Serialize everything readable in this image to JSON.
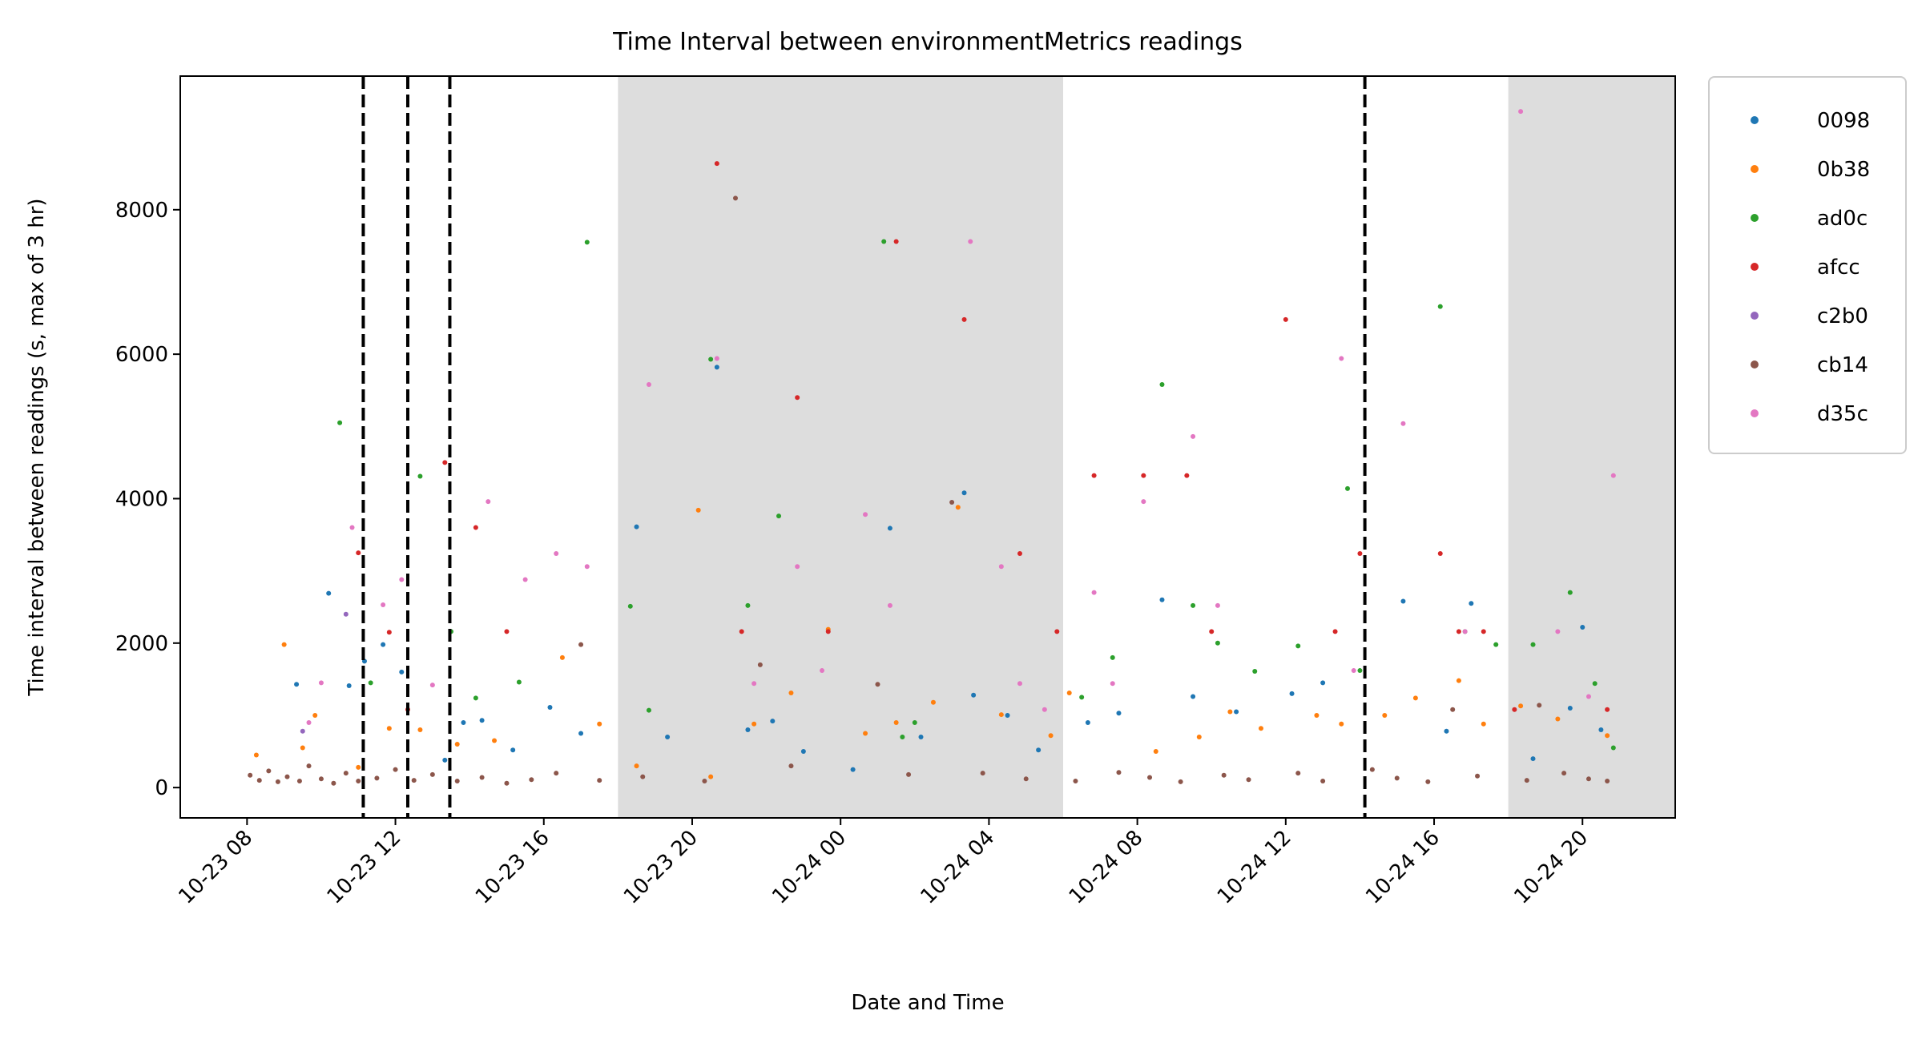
{
  "chart_data": {
    "type": "scatter",
    "title": "Time Interval between environmentMetrics readings",
    "xlabel": "Date and Time",
    "ylabel": "Time interval between readings (s, max of 3 hr)",
    "x_unit": "date-time",
    "xlim": [
      "2023-10-23 06:12",
      "2023-10-24 22:30"
    ],
    "ylim": [
      -420,
      9850
    ],
    "x_ticks": [
      {
        "value": "2023-10-23 08:00",
        "label": "10-23 08"
      },
      {
        "value": "2023-10-23 12:00",
        "label": "10-23 12"
      },
      {
        "value": "2023-10-23 16:00",
        "label": "10-23 16"
      },
      {
        "value": "2023-10-23 20:00",
        "label": "10-23 20"
      },
      {
        "value": "2023-10-24 00:00",
        "label": "10-24 00"
      },
      {
        "value": "2023-10-24 04:00",
        "label": "10-24 04"
      },
      {
        "value": "2023-10-24 08:00",
        "label": "10-24 08"
      },
      {
        "value": "2023-10-24 12:00",
        "label": "10-24 12"
      },
      {
        "value": "2023-10-24 16:00",
        "label": "10-24 16"
      },
      {
        "value": "2023-10-24 20:00",
        "label": "10-24 20"
      }
    ],
    "y_ticks": [
      {
        "value": 0,
        "label": "0"
      },
      {
        "value": 2000,
        "label": "2000"
      },
      {
        "value": 4000,
        "label": "4000"
      },
      {
        "value": 6000,
        "label": "6000"
      },
      {
        "value": 8000,
        "label": "8000"
      }
    ],
    "grid": false,
    "legend_position": "outside-top-right",
    "shaded_regions": [
      {
        "start": "2023-10-23 18:00",
        "end": "2023-10-24 06:00",
        "color": "#dddddd"
      },
      {
        "start": "2023-10-24 18:00",
        "end": "2023-10-24 22:30",
        "color": "#dddddd"
      }
    ],
    "vertical_lines": [
      "2023-10-23 11:08",
      "2023-10-23 12:20",
      "2023-10-23 13:28",
      "2023-10-24 14:08"
    ],
    "series": [
      {
        "name": "0098",
        "color": "#1f77b4",
        "points": [
          [
            "2023-10-23 09:20",
            1430
          ],
          [
            "2023-10-23 10:12",
            2690
          ],
          [
            "2023-10-23 10:45",
            1410
          ],
          [
            "2023-10-23 11:10",
            1750
          ],
          [
            "2023-10-23 11:40",
            1980
          ],
          [
            "2023-10-23 12:10",
            1600
          ],
          [
            "2023-10-23 13:20",
            380
          ],
          [
            "2023-10-23 13:50",
            900
          ],
          [
            "2023-10-23 14:20",
            930
          ],
          [
            "2023-10-23 15:10",
            520
          ],
          [
            "2023-10-23 16:10",
            1110
          ],
          [
            "2023-10-23 17:00",
            750
          ],
          [
            "2023-10-23 18:30",
            3610
          ],
          [
            "2023-10-23 19:20",
            700
          ],
          [
            "2023-10-23 20:40",
            5820
          ],
          [
            "2023-10-23 21:30",
            800
          ],
          [
            "2023-10-23 22:10",
            920
          ],
          [
            "2023-10-23 23:00",
            500
          ],
          [
            "2023-10-24 00:20",
            250
          ],
          [
            "2023-10-24 01:20",
            3590
          ],
          [
            "2023-10-24 02:10",
            700
          ],
          [
            "2023-10-24 03:20",
            4080
          ],
          [
            "2023-10-24 03:35",
            1280
          ],
          [
            "2023-10-24 04:30",
            1000
          ],
          [
            "2023-10-24 05:20",
            520
          ],
          [
            "2023-10-24 06:40",
            900
          ],
          [
            "2023-10-24 07:30",
            1030
          ],
          [
            "2023-10-24 08:40",
            2600
          ],
          [
            "2023-10-24 09:30",
            1260
          ],
          [
            "2023-10-24 10:40",
            1050
          ],
          [
            "2023-10-24 12:10",
            1300
          ],
          [
            "2023-10-24 13:00",
            1450
          ],
          [
            "2023-10-24 15:10",
            2580
          ],
          [
            "2023-10-24 16:20",
            780
          ],
          [
            "2023-10-24 17:00",
            2550
          ],
          [
            "2023-10-24 18:40",
            400
          ],
          [
            "2023-10-24 19:40",
            1100
          ],
          [
            "2023-10-24 20:00",
            2220
          ],
          [
            "2023-10-24 20:30",
            800
          ]
        ]
      },
      {
        "name": "0b38",
        "color": "#ff7f0e",
        "points": [
          [
            "2023-10-23 08:15",
            450
          ],
          [
            "2023-10-23 09:00",
            1980
          ],
          [
            "2023-10-23 09:30",
            550
          ],
          [
            "2023-10-23 09:50",
            1000
          ],
          [
            "2023-10-23 11:00",
            280
          ],
          [
            "2023-10-23 11:50",
            820
          ],
          [
            "2023-10-23 12:40",
            800
          ],
          [
            "2023-10-23 13:40",
            600
          ],
          [
            "2023-10-23 14:40",
            650
          ],
          [
            "2023-10-23 16:30",
            1800
          ],
          [
            "2023-10-23 17:30",
            880
          ],
          [
            "2023-10-23 18:30",
            300
          ],
          [
            "2023-10-23 20:10",
            3840
          ],
          [
            "2023-10-23 20:30",
            150
          ],
          [
            "2023-10-23 21:40",
            880
          ],
          [
            "2023-10-23 22:40",
            1310
          ],
          [
            "2023-10-23 23:40",
            2190
          ],
          [
            "2023-10-24 00:40",
            750
          ],
          [
            "2023-10-24 01:30",
            900
          ],
          [
            "2023-10-24 02:30",
            1180
          ],
          [
            "2023-10-24 03:10",
            3880
          ],
          [
            "2023-10-24 04:20",
            1010
          ],
          [
            "2023-10-24 05:40",
            720
          ],
          [
            "2023-10-24 06:10",
            1310
          ],
          [
            "2023-10-24 08:30",
            500
          ],
          [
            "2023-10-24 09:40",
            700
          ],
          [
            "2023-10-24 10:30",
            1050
          ],
          [
            "2023-10-24 11:20",
            820
          ],
          [
            "2023-10-24 12:50",
            1000
          ],
          [
            "2023-10-24 13:30",
            880
          ],
          [
            "2023-10-24 14:40",
            1000
          ],
          [
            "2023-10-24 15:30",
            1240
          ],
          [
            "2023-10-24 16:40",
            1480
          ],
          [
            "2023-10-24 17:20",
            880
          ],
          [
            "2023-10-24 18:20",
            1130
          ],
          [
            "2023-10-24 19:20",
            950
          ],
          [
            "2023-10-24 20:40",
            720
          ]
        ]
      },
      {
        "name": "ad0c",
        "color": "#2ca02c",
        "points": [
          [
            "2023-10-23 10:30",
            5050
          ],
          [
            "2023-10-23 11:20",
            1450
          ],
          [
            "2023-10-23 12:40",
            4310
          ],
          [
            "2023-10-23 13:30",
            2160
          ],
          [
            "2023-10-23 14:10",
            1240
          ],
          [
            "2023-10-23 15:20",
            1460
          ],
          [
            "2023-10-23 17:10",
            7550
          ],
          [
            "2023-10-23 18:20",
            2510
          ],
          [
            "2023-10-23 18:50",
            1070
          ],
          [
            "2023-10-23 20:30",
            5930
          ],
          [
            "2023-10-23 21:30",
            2520
          ],
          [
            "2023-10-23 22:20",
            3760
          ],
          [
            "2023-10-24 01:10",
            7560
          ],
          [
            "2023-10-24 01:40",
            700
          ],
          [
            "2023-10-24 02:00",
            900
          ],
          [
            "2023-10-24 06:30",
            1250
          ],
          [
            "2023-10-24 07:20",
            1800
          ],
          [
            "2023-10-24 08:40",
            5580
          ],
          [
            "2023-10-24 09:30",
            2520
          ],
          [
            "2023-10-24 10:10",
            2000
          ],
          [
            "2023-10-24 11:10",
            1610
          ],
          [
            "2023-10-24 12:20",
            1960
          ],
          [
            "2023-10-24 13:40",
            4140
          ],
          [
            "2023-10-24 14:00",
            1620
          ],
          [
            "2023-10-24 16:10",
            6660
          ],
          [
            "2023-10-24 16:50",
            2160
          ],
          [
            "2023-10-24 17:40",
            1980
          ],
          [
            "2023-10-24 18:40",
            1980
          ],
          [
            "2023-10-24 19:40",
            2700
          ],
          [
            "2023-10-24 20:20",
            1440
          ],
          [
            "2023-10-24 20:50",
            550
          ]
        ]
      },
      {
        "name": "afcc",
        "color": "#d62728",
        "points": [
          [
            "2023-10-23 11:00",
            3250
          ],
          [
            "2023-10-23 11:50",
            2150
          ],
          [
            "2023-10-23 12:20",
            1080
          ],
          [
            "2023-10-23 13:20",
            4500
          ],
          [
            "2023-10-23 14:10",
            3600
          ],
          [
            "2023-10-23 15:00",
            2160
          ],
          [
            "2023-10-23 20:40",
            8640
          ],
          [
            "2023-10-23 21:20",
            2160
          ],
          [
            "2023-10-23 22:50",
            5400
          ],
          [
            "2023-10-23 23:40",
            2160
          ],
          [
            "2023-10-24 01:30",
            7560
          ],
          [
            "2023-10-24 03:20",
            6480
          ],
          [
            "2023-10-24 04:50",
            3240
          ],
          [
            "2023-10-24 05:50",
            2160
          ],
          [
            "2023-10-24 06:50",
            4320
          ],
          [
            "2023-10-24 08:10",
            4320
          ],
          [
            "2023-10-24 09:20",
            4320
          ],
          [
            "2023-10-24 10:00",
            2160
          ],
          [
            "2023-10-24 12:00",
            6480
          ],
          [
            "2023-10-24 13:20",
            2160
          ],
          [
            "2023-10-24 14:00",
            3240
          ],
          [
            "2023-10-24 16:10",
            3240
          ],
          [
            "2023-10-24 16:40",
            2160
          ],
          [
            "2023-10-24 17:20",
            2160
          ],
          [
            "2023-10-24 18:10",
            1080
          ],
          [
            "2023-10-24 20:40",
            1080
          ]
        ]
      },
      {
        "name": "c2b0",
        "color": "#9467bd",
        "points": [
          [
            "2023-10-23 09:30",
            780
          ],
          [
            "2023-10-23 10:40",
            2400
          ]
        ]
      },
      {
        "name": "cb14",
        "color": "#8c564b",
        "points": [
          [
            "2023-10-23 08:05",
            170
          ],
          [
            "2023-10-23 08:20",
            100
          ],
          [
            "2023-10-23 08:35",
            230
          ],
          [
            "2023-10-23 08:50",
            80
          ],
          [
            "2023-10-23 09:05",
            150
          ],
          [
            "2023-10-23 09:25",
            90
          ],
          [
            "2023-10-23 09:40",
            300
          ],
          [
            "2023-10-23 10:00",
            120
          ],
          [
            "2023-10-23 10:20",
            60
          ],
          [
            "2023-10-23 10:40",
            200
          ],
          [
            "2023-10-23 11:00",
            90
          ],
          [
            "2023-10-23 11:30",
            130
          ],
          [
            "2023-10-23 12:00",
            250
          ],
          [
            "2023-10-23 12:30",
            100
          ],
          [
            "2023-10-23 13:00",
            180
          ],
          [
            "2023-10-23 13:40",
            90
          ],
          [
            "2023-10-23 14:20",
            140
          ],
          [
            "2023-10-23 15:00",
            60
          ],
          [
            "2023-10-23 15:40",
            110
          ],
          [
            "2023-10-23 16:20",
            200
          ],
          [
            "2023-10-23 17:00",
            1980
          ],
          [
            "2023-10-23 17:30",
            100
          ],
          [
            "2023-10-23 18:40",
            150
          ],
          [
            "2023-10-23 20:20",
            90
          ],
          [
            "2023-10-23 21:10",
            8160
          ],
          [
            "2023-10-23 21:50",
            1700
          ],
          [
            "2023-10-23 22:40",
            300
          ],
          [
            "2023-10-24 01:00",
            1430
          ],
          [
            "2023-10-24 01:50",
            180
          ],
          [
            "2023-10-24 03:00",
            3950
          ],
          [
            "2023-10-24 03:50",
            200
          ],
          [
            "2023-10-24 05:00",
            120
          ],
          [
            "2023-10-24 06:20",
            90
          ],
          [
            "2023-10-24 07:30",
            210
          ],
          [
            "2023-10-24 08:20",
            140
          ],
          [
            "2023-10-24 09:10",
            80
          ],
          [
            "2023-10-24 10:20",
            170
          ],
          [
            "2023-10-24 11:00",
            110
          ],
          [
            "2023-10-24 12:20",
            200
          ],
          [
            "2023-10-24 13:00",
            90
          ],
          [
            "2023-10-24 14:20",
            250
          ],
          [
            "2023-10-24 15:00",
            130
          ],
          [
            "2023-10-24 15:50",
            80
          ],
          [
            "2023-10-24 16:30",
            1080
          ],
          [
            "2023-10-24 17:10",
            160
          ],
          [
            "2023-10-24 18:30",
            100
          ],
          [
            "2023-10-24 18:50",
            1140
          ],
          [
            "2023-10-24 19:30",
            200
          ],
          [
            "2023-10-24 20:10",
            120
          ],
          [
            "2023-10-24 20:40",
            90
          ]
        ]
      },
      {
        "name": "d35c",
        "color": "#e377c2",
        "points": [
          [
            "2023-10-23 09:40",
            900
          ],
          [
            "2023-10-23 10:00",
            1450
          ],
          [
            "2023-10-23 10:50",
            3600
          ],
          [
            "2023-10-23 11:40",
            2530
          ],
          [
            "2023-10-23 12:10",
            2880
          ],
          [
            "2023-10-23 13:00",
            1420
          ],
          [
            "2023-10-23 14:30",
            3960
          ],
          [
            "2023-10-23 15:30",
            2880
          ],
          [
            "2023-10-23 16:20",
            3240
          ],
          [
            "2023-10-23 17:10",
            3060
          ],
          [
            "2023-10-23 18:50",
            5580
          ],
          [
            "2023-10-23 20:40",
            5940
          ],
          [
            "2023-10-23 21:40",
            1440
          ],
          [
            "2023-10-23 22:50",
            3060
          ],
          [
            "2023-10-23 23:30",
            1620
          ],
          [
            "2023-10-24 00:40",
            3780
          ],
          [
            "2023-10-24 01:20",
            2520
          ],
          [
            "2023-10-24 03:30",
            7560
          ],
          [
            "2023-10-24 04:20",
            3060
          ],
          [
            "2023-10-24 04:50",
            1440
          ],
          [
            "2023-10-24 05:30",
            1080
          ],
          [
            "2023-10-24 06:50",
            2700
          ],
          [
            "2023-10-24 07:20",
            1440
          ],
          [
            "2023-10-24 08:10",
            3960
          ],
          [
            "2023-10-24 09:30",
            4860
          ],
          [
            "2023-10-24 10:10",
            2520
          ],
          [
            "2023-10-24 13:30",
            5940
          ],
          [
            "2023-10-24 13:50",
            1620
          ],
          [
            "2023-10-24 15:10",
            5040
          ],
          [
            "2023-10-24 16:50",
            2160
          ],
          [
            "2023-10-24 18:20",
            9360
          ],
          [
            "2023-10-24 19:20",
            2160
          ],
          [
            "2023-10-24 20:10",
            1260
          ],
          [
            "2023-10-24 20:50",
            4320
          ]
        ]
      }
    ]
  }
}
